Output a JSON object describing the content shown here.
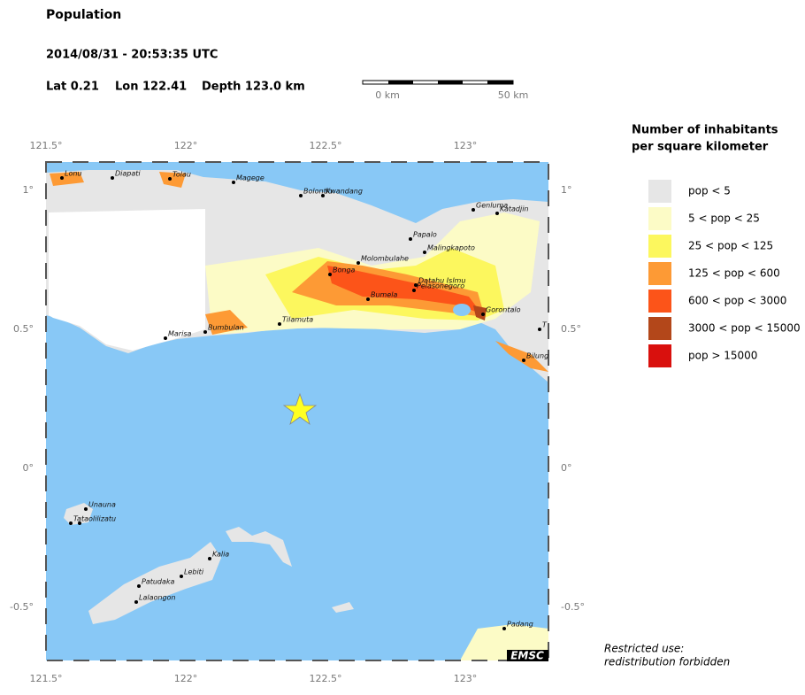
{
  "header": {
    "title": "Population",
    "datetime": "2014/08/31 - 20:53:35 UTC",
    "lat": "Lat  0.21",
    "lon": "Lon 122.41",
    "depth": "Depth 123.0 km"
  },
  "scale_bar": {
    "start": "0 km",
    "end": "50 km"
  },
  "axes": {
    "x_labels": [
      "121.5°",
      "122°",
      "122.5°",
      "123°"
    ],
    "y_labels": [
      "1°",
      "0.5°",
      "0°",
      "-0.5°"
    ]
  },
  "legend": {
    "title_line1": "Number of inhabitants",
    "title_line2": "per square kilometer",
    "items": [
      {
        "label": "pop < 5",
        "color": "#e6e6e6"
      },
      {
        "label": "5 < pop < 25",
        "color": "#fcfbc6"
      },
      {
        "label": "25 < pop < 125",
        "color": "#fcf75e"
      },
      {
        "label": "125 < pop < 600",
        "color": "#fd9a35"
      },
      {
        "label": "600 < pop < 3000",
        "color": "#fc5419"
      },
      {
        "label": "3000 < pop < 15000",
        "color": "#b3471a"
      },
      {
        "label": "pop > 15000",
        "color": "#d9100d"
      }
    ]
  },
  "places": [
    "Lonu",
    "Diapati",
    "Tolau",
    "Magege",
    "Bolontio",
    "Kwandang",
    "Genluma",
    "Katadjin",
    "Papalo",
    "Malingkapoto",
    "Molombulahe",
    "Bonga",
    "Datahu Islmu",
    "Pelasonegoro",
    "Bumela",
    "Gorontalo",
    "Tilamuta",
    "Bumbulan",
    "Marisa",
    "T",
    "Bilung",
    "Unauna",
    "Tataolilizatu",
    "Kalia",
    "Lebiti",
    "Patudaka",
    "Lalaongon",
    "Padang"
  ],
  "footer": {
    "brand": "EMSC",
    "notice_line1": "Restricted use:",
    "notice_line2": "redistribution forbidden"
  }
}
